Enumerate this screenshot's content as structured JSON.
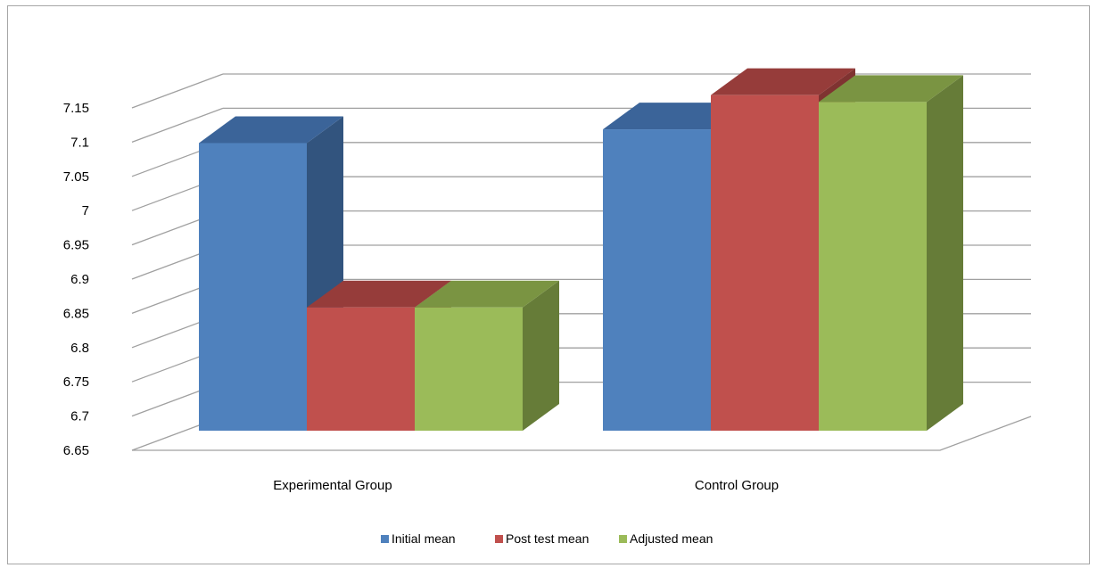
{
  "chart_data": {
    "type": "bar",
    "style": "3d-clustered-column",
    "categories": [
      "Experimental Group",
      "Control Group"
    ],
    "series": [
      {
        "name": "Initial mean",
        "values": [
          7.07,
          7.09
        ],
        "color": "#4f81bd",
        "top_color": "#3b6499",
        "side_color": "#32547e"
      },
      {
        "name": "Post test mean",
        "values": [
          6.83,
          7.14
        ],
        "color": "#c0504d",
        "top_color": "#963c3a",
        "side_color": "#7f3331"
      },
      {
        "name": "Adjusted mean",
        "values": [
          6.83,
          7.13
        ],
        "color": "#9bbb59",
        "top_color": "#7a9442",
        "side_color": "#667c38"
      }
    ],
    "ylim": [
      6.65,
      7.15
    ],
    "yticks": [
      "6.65",
      "6.7",
      "6.75",
      "6.8",
      "6.85",
      "6.9",
      "6.95",
      "7",
      "7.05",
      "7.1",
      "7.15"
    ],
    "grid": true,
    "legend_position": "bottom",
    "title": "",
    "xlabel": "",
    "ylabel": ""
  }
}
